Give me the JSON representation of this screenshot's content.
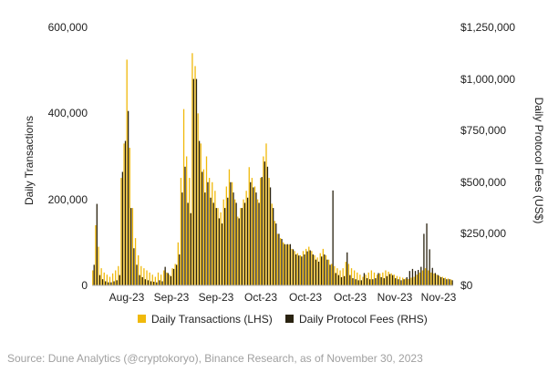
{
  "chart_data": {
    "type": "bar",
    "ylabel_left": "Daily Transactions",
    "ylabel_right": "Daily Protocol Fees (US$)",
    "ylim_left": [
      0,
      600000
    ],
    "ylim_right": [
      0,
      1250000
    ],
    "yticks_left": [
      "0",
      "200,000",
      "400,000",
      "600,000"
    ],
    "yticks_right": [
      "$0",
      "$250,000",
      "$500,000",
      "$750,000",
      "$1,000,000",
      "$1,250,000"
    ],
    "x_tick_labels": [
      "Aug-23",
      "Sep-23",
      "Sep-23",
      "Oct-23",
      "Oct-23",
      "Oct-23",
      "Nov-23",
      "Nov-23"
    ],
    "series": [
      {
        "name": "Daily Transactions (LHS)",
        "color": "#F0B90B",
        "values": [
          35000,
          140000,
          90000,
          40000,
          30000,
          25000,
          20000,
          28000,
          35000,
          45000,
          250000,
          330000,
          525000,
          320000,
          180000,
          110000,
          70000,
          45000,
          40000,
          35000,
          30000,
          25000,
          20000,
          30000,
          25000,
          35000,
          30000,
          25000,
          40000,
          50000,
          100000,
          250000,
          410000,
          300000,
          250000,
          540000,
          510000,
          400000,
          330000,
          270000,
          300000,
          250000,
          240000,
          220000,
          180000,
          170000,
          200000,
          230000,
          270000,
          240000,
          200000,
          160000,
          180000,
          200000,
          220000,
          275000,
          250000,
          230000,
          200000,
          250000,
          300000,
          330000,
          250000,
          190000,
          150000,
          120000,
          110000,
          100000,
          95000,
          95000,
          85000,
          80000,
          75000,
          70000,
          80000,
          85000,
          90000,
          80000,
          70000,
          65000,
          75000,
          85000,
          70000,
          60000,
          50000,
          45000,
          40000,
          35000,
          40000,
          55000,
          50000,
          40000,
          35000,
          30000,
          25000,
          20000,
          25000,
          30000,
          35000,
          30000,
          25000,
          28000,
          30000,
          35000,
          32000,
          28000,
          25000,
          22000,
          20000,
          18000,
          16000,
          15000,
          18000,
          20000,
          25000,
          30000,
          35000,
          40000,
          35000,
          30000,
          28000,
          25000,
          22000,
          20000,
          18000,
          16000,
          14000
        ]
      },
      {
        "name": "Daily Protocol Fees (RHS)",
        "color": "#2A2311",
        "values": [
          100000,
          395000,
          50000,
          30000,
          20000,
          15000,
          15000,
          20000,
          25000,
          50000,
          550000,
          700000,
          845000,
          375000,
          180000,
          100000,
          50000,
          40000,
          30000,
          25000,
          20000,
          18000,
          15000,
          25000,
          20000,
          90000,
          60000,
          45000,
          80000,
          100000,
          150000,
          450000,
          575000,
          400000,
          350000,
          1000000,
          1000000,
          700000,
          550000,
          450000,
          500000,
          425000,
          400000,
          375000,
          325000,
          300000,
          375000,
          425000,
          500000,
          450000,
          400000,
          325000,
          375000,
          400000,
          425000,
          500000,
          475000,
          450000,
          400000,
          525000,
          600000,
          575000,
          475000,
          375000,
          300000,
          250000,
          225000,
          200000,
          200000,
          200000,
          175000,
          150000,
          145000,
          140000,
          150000,
          165000,
          170000,
          150000,
          125000,
          115000,
          140000,
          150000,
          125000,
          100000,
          460000,
          60000,
          50000,
          40000,
          45000,
          160000,
          50000,
          35000,
          30000,
          25000,
          25000,
          60000,
          35000,
          30000,
          30000,
          35000,
          60000,
          40000,
          35000,
          45000,
          55000,
          50000,
          35000,
          30000,
          25000,
          30000,
          40000,
          70000,
          80000,
          70000,
          75000,
          90000,
          250000,
          300000,
          175000,
          85000,
          60000,
          50000,
          40000,
          35000,
          30000,
          30000,
          25000
        ]
      }
    ],
    "legend_position": "bottom",
    "grid": false
  },
  "source_text": "Source: Dune Analytics (@cryptokoryo), Binance Research, as of November 30, 2023"
}
